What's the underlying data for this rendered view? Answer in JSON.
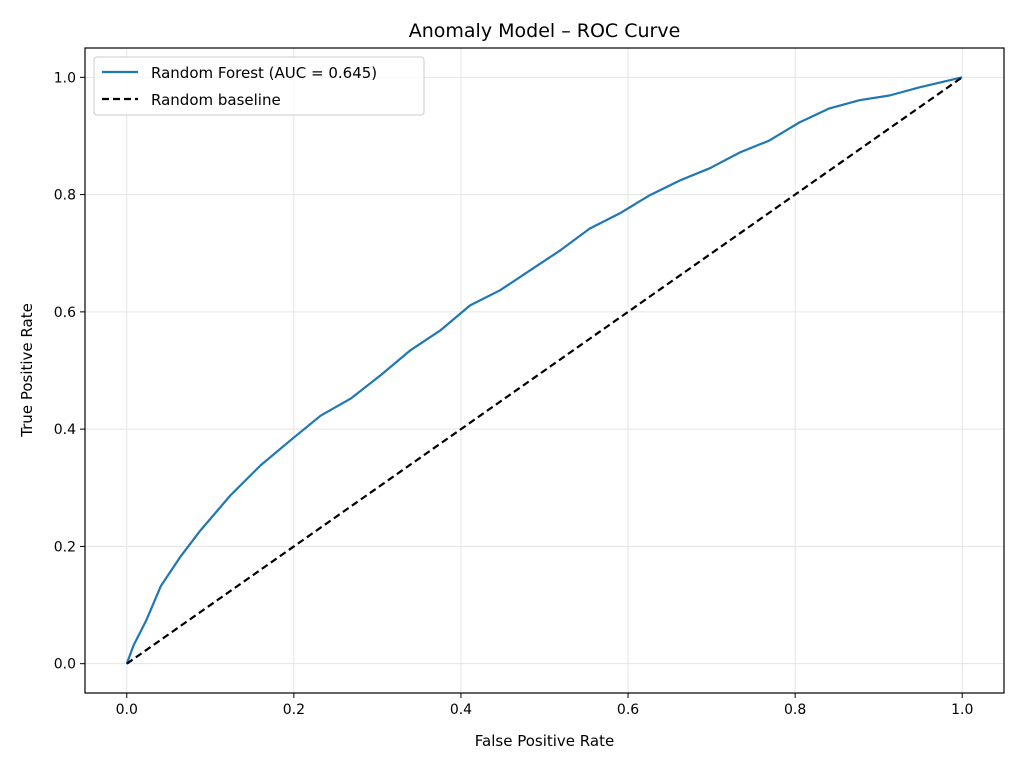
{
  "chart_data": {
    "type": "line",
    "title": "Anomaly Model – ROC Curve",
    "xlabel": "False Positive Rate",
    "ylabel": "True Positive Rate",
    "xlim": [
      -0.05,
      1.05
    ],
    "ylim": [
      -0.05,
      1.05
    ],
    "xticks": [
      "0.0",
      "0.2",
      "0.4",
      "0.6",
      "0.8",
      "1.0"
    ],
    "yticks": [
      "0.0",
      "0.2",
      "0.4",
      "0.6",
      "0.8",
      "1.0"
    ],
    "grid": true,
    "legend_position": "top-left",
    "series": [
      {
        "name": "Random Forest (AUC = 0.645)",
        "color": "#1f77b4",
        "style": "solid",
        "x": [
          0,
          0.008,
          0.023,
          0.041,
          0.065,
          0.088,
          0.124,
          0.16,
          0.196,
          0.232,
          0.268,
          0.303,
          0.339,
          0.375,
          0.411,
          0.447,
          0.483,
          0.519,
          0.554,
          0.59,
          0.626,
          0.662,
          0.698,
          0.734,
          0.769,
          0.805,
          0.841,
          0.877,
          0.913,
          0.949,
          1.0
        ],
        "y": [
          0,
          0.031,
          0.073,
          0.133,
          0.184,
          0.227,
          0.287,
          0.338,
          0.381,
          0.423,
          0.452,
          0.491,
          0.534,
          0.568,
          0.611,
          0.637,
          0.671,
          0.705,
          0.742,
          0.768,
          0.799,
          0.824,
          0.845,
          0.872,
          0.892,
          0.923,
          0.947,
          0.961,
          0.969,
          0.983,
          1.0
        ]
      },
      {
        "name": "Random baseline",
        "color": "#000000",
        "style": "dashed",
        "x": [
          0,
          1
        ],
        "y": [
          0,
          1
        ]
      }
    ]
  }
}
